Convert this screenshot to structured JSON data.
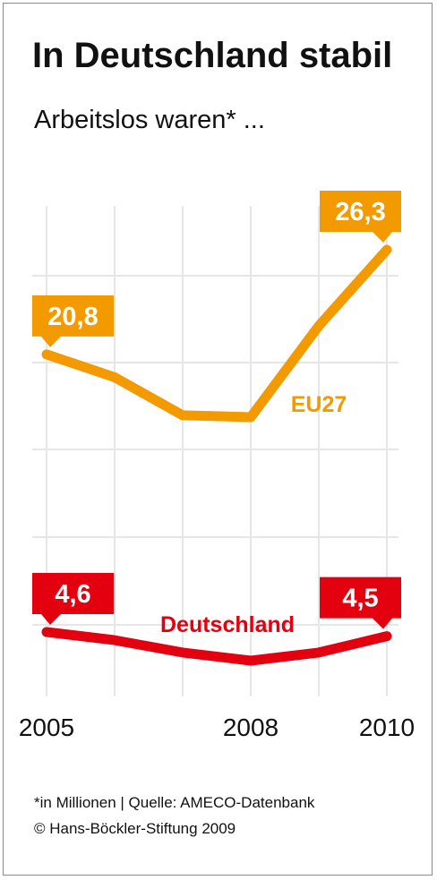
{
  "title": "In Deutschland stabil",
  "subtitle": "Arbeitslos waren* ...",
  "footnote": {
    "note": "*in Millionen | Quelle: AMECO-Datenbank",
    "copyright": "© Hans-Böckler-Stiftung 2009"
  },
  "colors": {
    "eu": "#f39a00",
    "de": "#e3000f",
    "grid": "#e6e6e6",
    "text": "#111111"
  },
  "chart_data": {
    "type": "line",
    "title": "In Deutschland stabil",
    "subtitle": "Arbeitslos waren* ...",
    "unit": "in Millionen",
    "x": [
      2005,
      2006,
      2007,
      2008,
      2009,
      2010
    ],
    "x_tick_labels": [
      "2005",
      "",
      "",
      "2008",
      "",
      "2010"
    ],
    "grid": true,
    "series": [
      {
        "name": "EU27",
        "color": "#f39a00",
        "values": [
          20.8,
          19.6,
          17.6,
          17.5,
          22.3,
          26.3
        ],
        "callouts": [
          {
            "index": 0,
            "text": "20,8"
          },
          {
            "index": 5,
            "text": "26,3"
          }
        ]
      },
      {
        "name": "Deutschland",
        "color": "#e3000f",
        "values": [
          4.6,
          4.4,
          4.1,
          3.9,
          4.1,
          4.5
        ],
        "callouts": [
          {
            "index": 0,
            "text": "4,6"
          },
          {
            "index": 5,
            "text": "4,5"
          }
        ]
      }
    ]
  }
}
